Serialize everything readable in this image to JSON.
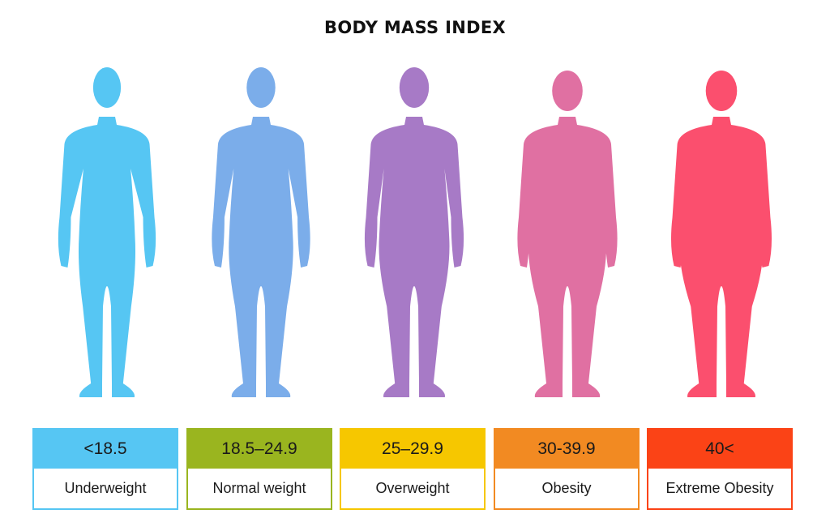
{
  "title": "BODY MASS INDEX",
  "categories": [
    {
      "range": "<18.5",
      "label": "Underweight",
      "figure_color": "#56c6f3",
      "band_color": "#56c6f3",
      "figure_icon": "underweight-body-icon",
      "body_width_scale": 0.72
    },
    {
      "range": "18.5–24.9",
      "label": "Normal weight",
      "figure_color": "#7badea",
      "band_color": "#9ab51f",
      "figure_icon": "normal-body-icon",
      "body_width_scale": 0.82
    },
    {
      "range": "25–29.9",
      "label": "Overweight",
      "figure_color": "#a77ac6",
      "band_color": "#f6c700",
      "figure_icon": "overweight-body-icon",
      "body_width_scale": 0.9
    },
    {
      "range": "30-39.9",
      "label": "Obesity",
      "figure_color": "#e070a2",
      "band_color": "#f28a22",
      "figure_icon": "obese-body-icon",
      "body_width_scale": 1.0
    },
    {
      "range": "40<",
      "label": "Extreme Obesity",
      "figure_color": "#fb4f6e",
      "band_color": "#fb4316",
      "figure_icon": "extreme-obese-body-icon",
      "body_width_scale": 1.08
    }
  ]
}
